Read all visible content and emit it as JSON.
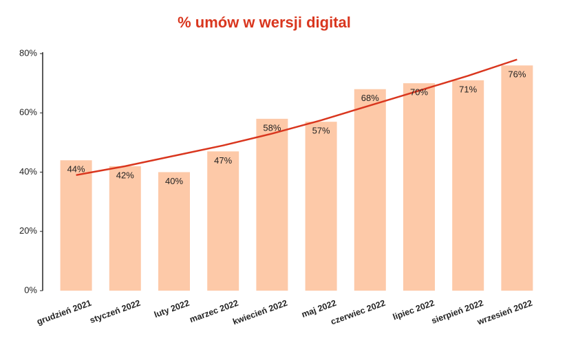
{
  "chart_data": {
    "type": "bar",
    "title": "% umów w wersji digital",
    "categories": [
      "grudzień 2021",
      "styczeń 2022",
      "luty 2022",
      "marzec 2022",
      "kwiecień 2022",
      "maj 2022",
      "czerwiec 2022",
      "lipiec 2022",
      "sierpień 2022",
      "wrzesień 2022"
    ],
    "values": [
      44,
      42,
      40,
      47,
      58,
      57,
      68,
      70,
      71,
      76
    ],
    "value_labels": [
      "44%",
      "42%",
      "40%",
      "47%",
      "58%",
      "57%",
      "68%",
      "70%",
      "71%",
      "76%"
    ],
    "color": "#fdc9a8",
    "trend_values": [
      39,
      42,
      45.5,
      49,
      53,
      57.5,
      62.5,
      67.5,
      72.5,
      78
    ],
    "trend_color": "#d9361e",
    "ylim": [
      0,
      80
    ],
    "yticks": [
      {
        "value": 0,
        "label": "0%"
      },
      {
        "value": 20,
        "label": "20%"
      },
      {
        "value": 40,
        "label": "40%"
      },
      {
        "value": 60,
        "label": "60%"
      },
      {
        "value": 80,
        "label": "80%"
      }
    ]
  }
}
